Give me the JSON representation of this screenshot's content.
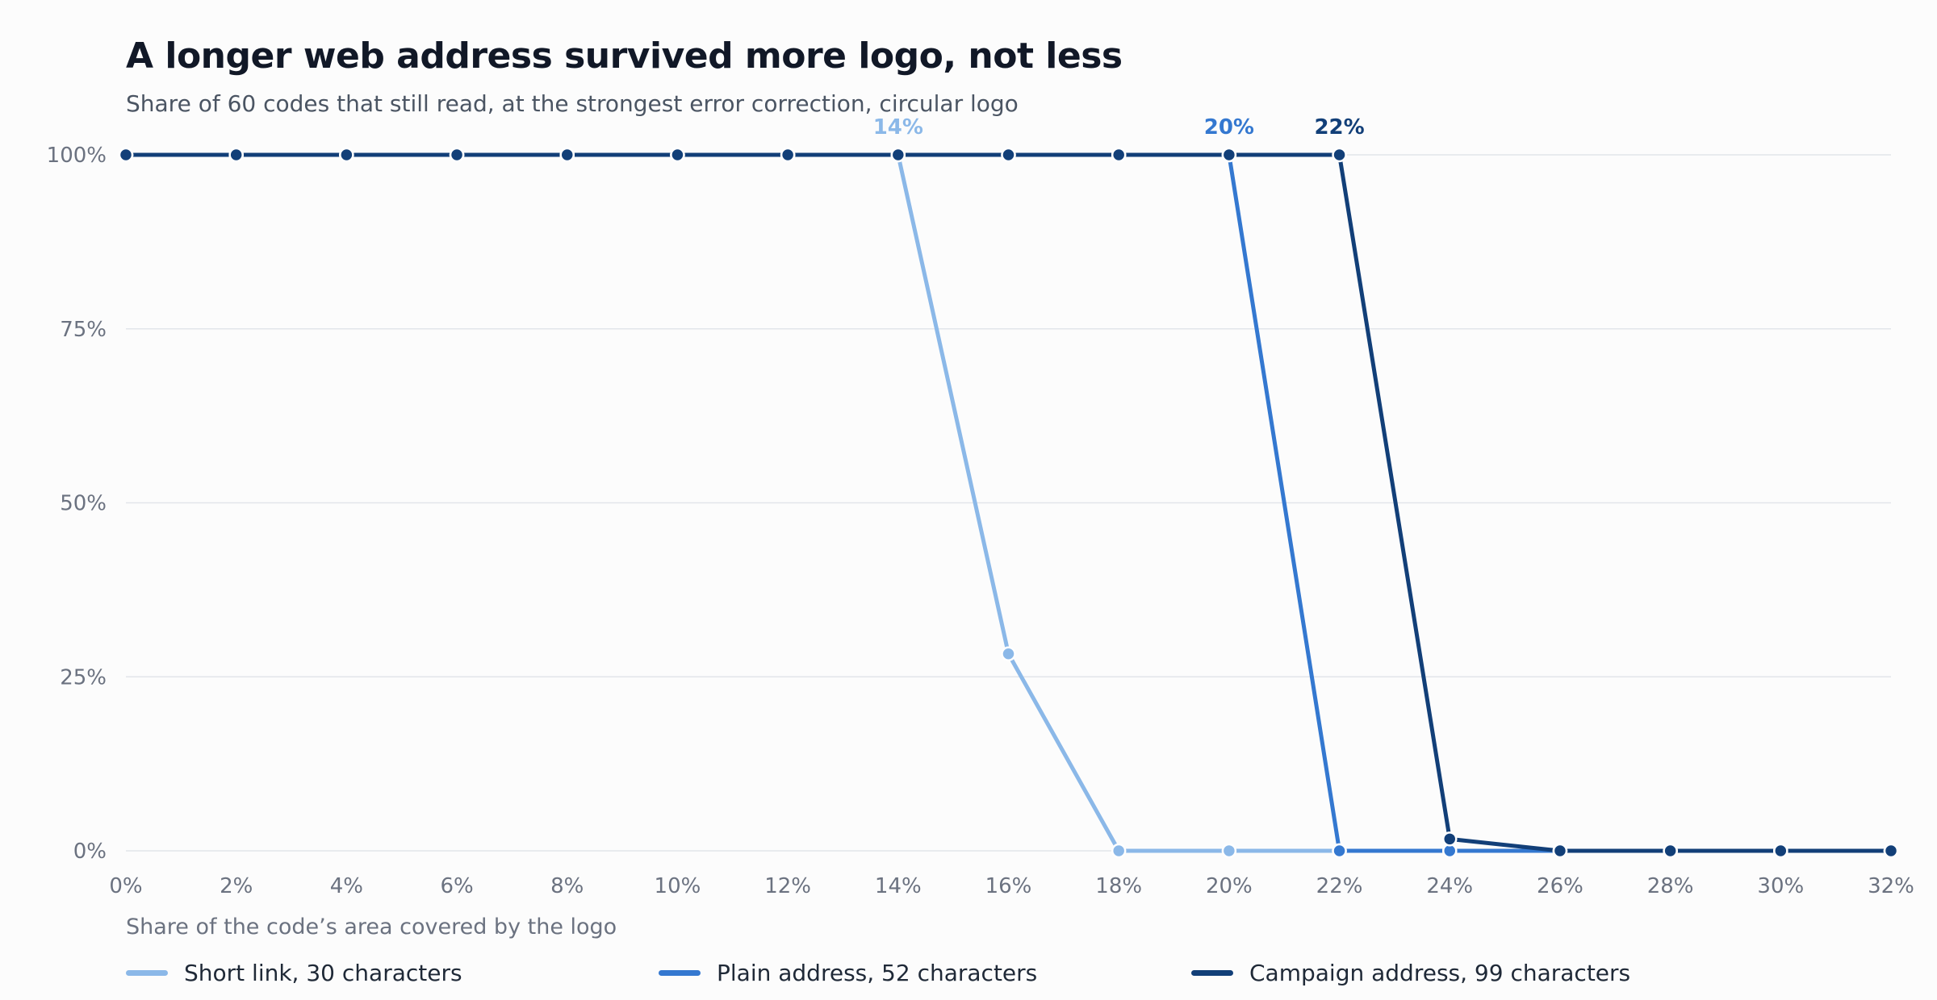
{
  "header": {
    "title": "A longer web address survived more logo, not less",
    "subtitle": "Share of 60 codes that still read, at the strongest error correction, circular logo"
  },
  "chart_data": {
    "type": "line",
    "title": "A longer web address survived more logo, not less",
    "subtitle": "Share of 60 codes that still read, at the strongest error correction, circular logo",
    "xlabel": "Share of the code’s area covered by the logo",
    "ylabel": "",
    "x": [
      0,
      2,
      4,
      6,
      8,
      10,
      12,
      14,
      16,
      18,
      20,
      22,
      24,
      26,
      28,
      30,
      32
    ],
    "xlim": [
      0,
      32
    ],
    "ylim": [
      0,
      100
    ],
    "x_tick_labels": [
      "0%",
      "2%",
      "4%",
      "6%",
      "8%",
      "10%",
      "12%",
      "14%",
      "16%",
      "18%",
      "20%",
      "22%",
      "24%",
      "26%",
      "28%",
      "30%",
      "32%"
    ],
    "y_ticks": [
      0,
      25,
      50,
      75,
      100
    ],
    "y_tick_labels": [
      "0%",
      "25%",
      "50%",
      "75%",
      "100%"
    ],
    "grid": "horizontal",
    "legend_position": "bottom",
    "series": [
      {
        "name": "Short link, 30 characters",
        "color": "#8bb8e8",
        "values": [
          100,
          100,
          100,
          100,
          100,
          100,
          100,
          100,
          28.3,
          0,
          0,
          0,
          0,
          0,
          0,
          0,
          0
        ],
        "annotation": {
          "x": 14,
          "text": "14%"
        }
      },
      {
        "name": "Plain address, 52 characters",
        "color": "#3478d0",
        "values": [
          100,
          100,
          100,
          100,
          100,
          100,
          100,
          100,
          100,
          100,
          100,
          0,
          0,
          0,
          0,
          0,
          0
        ],
        "annotation": {
          "x": 20,
          "text": "20%"
        }
      },
      {
        "name": "Campaign address, 99 characters",
        "color": "#123f78",
        "values": [
          100,
          100,
          100,
          100,
          100,
          100,
          100,
          100,
          100,
          100,
          100,
          100,
          1.7,
          0,
          0,
          0,
          0
        ],
        "annotation": {
          "x": 22,
          "text": "22%"
        }
      }
    ]
  }
}
